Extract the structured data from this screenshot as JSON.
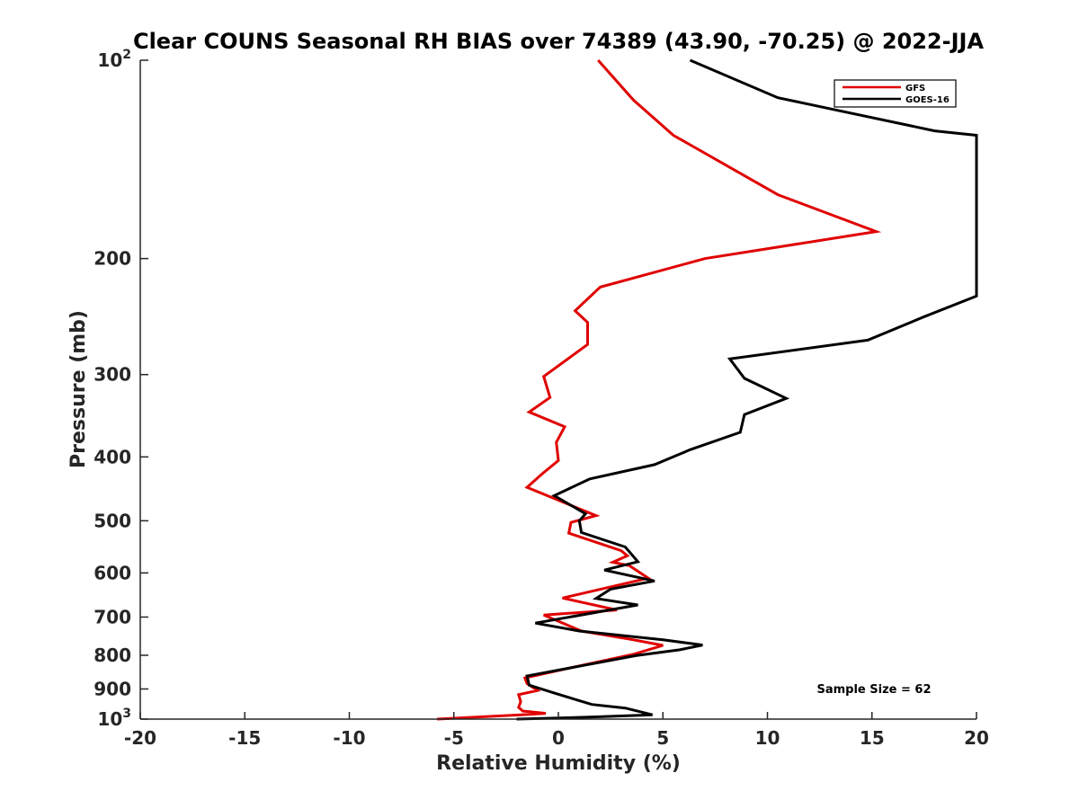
{
  "chart_data": {
    "type": "line",
    "title": "Clear COUNS Seasonal RH BIAS over 74389 (43.90, -70.25) @ 2022-JJA",
    "xlabel": "Relative Humidity (%)",
    "ylabel": "Pressure (mb)",
    "xlim": [
      -20,
      20
    ],
    "ylim": [
      100,
      1000
    ],
    "yscale": "log",
    "y_reversed": true,
    "x_ticks": [
      -20,
      -15,
      -10,
      -5,
      0,
      5,
      10,
      15,
      20
    ],
    "x_tick_labels": [
      "-20",
      "-15",
      "-10",
      "-5",
      "0",
      "5",
      "10",
      "15",
      "20"
    ],
    "y_ticks": [
      100,
      200,
      300,
      400,
      500,
      600,
      700,
      800,
      900,
      1000
    ],
    "y_tick_labels": [
      {
        "base": "10",
        "exp": "2"
      },
      {
        "base": "200",
        "exp": ""
      },
      {
        "base": "300",
        "exp": ""
      },
      {
        "base": "400",
        "exp": ""
      },
      {
        "base": "500",
        "exp": ""
      },
      {
        "base": "600",
        "exp": ""
      },
      {
        "base": "700",
        "exp": ""
      },
      {
        "base": "800",
        "exp": ""
      },
      {
        "base": "900",
        "exp": ""
      },
      {
        "base": "10",
        "exp": "3"
      }
    ],
    "grid": false,
    "legend_position": "top-right",
    "annotation": "Sample Size = 62",
    "series": [
      {
        "name": "GFS",
        "color": "#e00000",
        "points": [
          [
            1.9,
            100
          ],
          [
            3.6,
            115
          ],
          [
            5.5,
            130
          ],
          [
            10.5,
            160
          ],
          [
            15.2,
            182
          ],
          [
            7.0,
            200
          ],
          [
            2.0,
            221
          ],
          [
            0.8,
            240
          ],
          [
            1.4,
            250
          ],
          [
            1.4,
            270
          ],
          [
            -0.7,
            302
          ],
          [
            -0.4,
            325
          ],
          [
            -1.4,
            342
          ],
          [
            0.3,
            360
          ],
          [
            -0.1,
            380
          ],
          [
            0.0,
            405
          ],
          [
            -0.8,
            425
          ],
          [
            -1.5,
            445
          ],
          [
            1.8,
            491
          ],
          [
            0.6,
            503
          ],
          [
            0.5,
            522
          ],
          [
            3.0,
            555
          ],
          [
            3.3,
            565
          ],
          [
            2.6,
            578
          ],
          [
            3.4,
            585
          ],
          [
            4.3,
            611
          ],
          [
            0.2,
            655
          ],
          [
            2.8,
            683
          ],
          [
            -0.7,
            695
          ],
          [
            1.1,
            735
          ],
          [
            3.6,
            758
          ],
          [
            5.0,
            773
          ],
          [
            3.6,
            797
          ],
          [
            0.8,
            833
          ],
          [
            -1.6,
            866
          ],
          [
            -1.5,
            883
          ],
          [
            -1.0,
            905
          ],
          [
            -1.9,
            918
          ],
          [
            -1.8,
            941
          ],
          [
            -1.9,
            960
          ],
          [
            -1.7,
            972
          ],
          [
            -0.6,
            980
          ],
          [
            -1.8,
            985
          ],
          [
            -5.8,
            1000
          ]
        ]
      },
      {
        "name": "GOES-16",
        "color": "#000000",
        "points": [
          [
            6.3,
            100
          ],
          [
            10.5,
            114
          ],
          [
            18.0,
            128
          ],
          [
            20.0,
            130
          ],
          [
            20.0,
            228
          ],
          [
            17.5,
            245
          ],
          [
            14.8,
            266
          ],
          [
            8.2,
            284
          ],
          [
            8.9,
            304
          ],
          [
            10.9,
            326
          ],
          [
            8.9,
            345
          ],
          [
            8.7,
            367
          ],
          [
            6.3,
            390
          ],
          [
            4.6,
            411
          ],
          [
            1.5,
            432
          ],
          [
            -0.2,
            458
          ],
          [
            1.3,
            488
          ],
          [
            1.0,
            500
          ],
          [
            1.1,
            521
          ],
          [
            3.2,
            548
          ],
          [
            3.8,
            577
          ],
          [
            2.2,
            594
          ],
          [
            4.6,
            617
          ],
          [
            2.5,
            635
          ],
          [
            1.8,
            656
          ],
          [
            3.8,
            671
          ],
          [
            -1.1,
            715
          ],
          [
            1.0,
            735
          ],
          [
            5.0,
            758
          ],
          [
            6.9,
            772
          ],
          [
            5.8,
            785
          ],
          [
            3.7,
            801
          ],
          [
            -1.5,
            860
          ],
          [
            -1.4,
            888
          ],
          [
            -0.1,
            915
          ],
          [
            1.6,
            950
          ],
          [
            3.2,
            962
          ],
          [
            4.5,
            985
          ],
          [
            1.5,
            993
          ],
          [
            -2.0,
            1000
          ]
        ]
      }
    ]
  }
}
